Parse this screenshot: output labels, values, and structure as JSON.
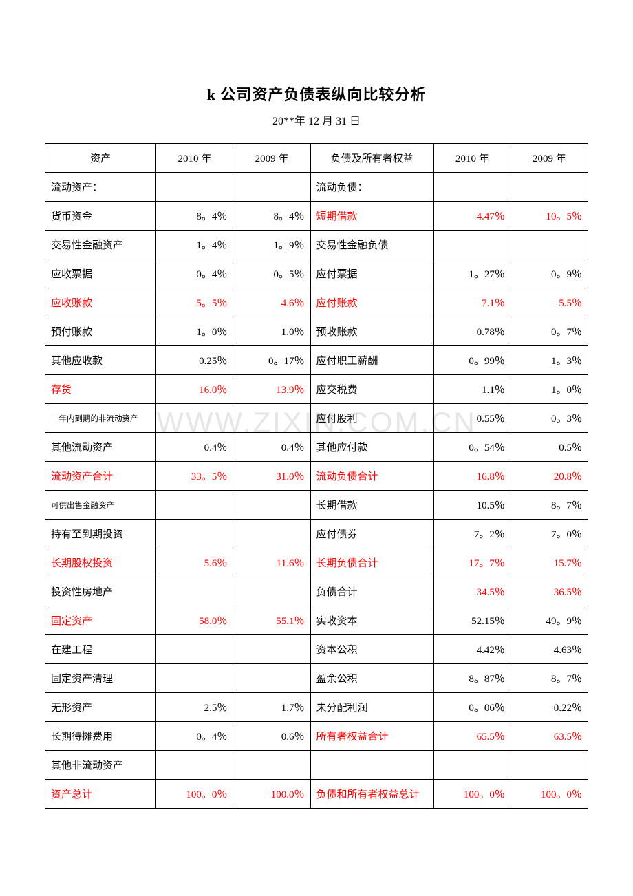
{
  "title": "k 公司资产负债表纵向比较分析",
  "subtitle": "20**年 12 月 31 日",
  "watermark": "WWW.ZIXIN.COM.CN",
  "headers": {
    "assets": "资产",
    "y2010": "2010 年",
    "y2009": "2009 年",
    "liab": "负债及所有者权益"
  },
  "rows": [
    {
      "a_label": "流动资产：",
      "a_red": false,
      "a_small": false,
      "a2010": "",
      "a2010_red": false,
      "a2009": "",
      "a2009_red": false,
      "l_label": "流动负债：",
      "l_red": false,
      "l2010": "",
      "l2010_red": false,
      "l2009": "",
      "l2009_red": false
    },
    {
      "a_label": "货币资金",
      "a_red": false,
      "a_small": false,
      "a2010": "8。4％",
      "a2010_red": false,
      "a2009": "8。4％",
      "a2009_red": false,
      "l_label": "短期借款",
      "l_red": true,
      "l2010": "4.47％",
      "l2010_red": true,
      "l2009": "10。5％",
      "l2009_red": true
    },
    {
      "a_label": "交易性金融资产",
      "a_red": false,
      "a_small": false,
      "a2010": "1。4％",
      "a2010_red": false,
      "a2009": "1。9％",
      "a2009_red": false,
      "l_label": "交易性金融负债",
      "l_red": false,
      "l2010": "",
      "l2010_red": false,
      "l2009": "",
      "l2009_red": false
    },
    {
      "a_label": "应收票据",
      "a_red": false,
      "a_small": false,
      "a2010": "0。4％",
      "a2010_red": false,
      "a2009": "0。5％",
      "a2009_red": false,
      "l_label": "应付票据",
      "l_red": false,
      "l2010": "1。27％",
      "l2010_red": false,
      "l2009": "0。9％",
      "l2009_red": false
    },
    {
      "a_label": "应收账款",
      "a_red": true,
      "a_small": false,
      "a2010": "5。5％",
      "a2010_red": true,
      "a2009": "4.6％",
      "a2009_red": true,
      "l_label": "应付账款",
      "l_red": true,
      "l2010": "7.1％",
      "l2010_red": true,
      "l2009": "5.5％",
      "l2009_red": true
    },
    {
      "a_label": "预付账款",
      "a_red": false,
      "a_small": false,
      "a2010": "1。0％",
      "a2010_red": false,
      "a2009": "1.0％",
      "a2009_red": false,
      "l_label": "预收账款",
      "l_red": false,
      "l2010": "0.78％",
      "l2010_red": false,
      "l2009": "0。7％",
      "l2009_red": false
    },
    {
      "a_label": "其他应收款",
      "a_red": false,
      "a_small": false,
      "a2010": "0.25％",
      "a2010_red": false,
      "a2009": "0。17％",
      "a2009_red": false,
      "l_label": "应付职工薪酬",
      "l_red": false,
      "l2010": "0。99％",
      "l2010_red": false,
      "l2009": "1。3％",
      "l2009_red": false
    },
    {
      "a_label": "存货",
      "a_red": true,
      "a_small": false,
      "a2010": "16.0％",
      "a2010_red": true,
      "a2009": "13.9％",
      "a2009_red": true,
      "l_label": "应交税费",
      "l_red": false,
      "l2010": "1.1％",
      "l2010_red": false,
      "l2009": "1。0％",
      "l2009_red": false
    },
    {
      "a_label": "一年内到期的非流动资产",
      "a_red": false,
      "a_small": true,
      "a2010": "",
      "a2010_red": false,
      "a2009": "",
      "a2009_red": false,
      "l_label": "应付股利",
      "l_red": false,
      "l2010": "0.55％",
      "l2010_red": false,
      "l2009": "0。3％",
      "l2009_red": false
    },
    {
      "a_label": "其他流动资产",
      "a_red": false,
      "a_small": false,
      "a2010": "0.4％",
      "a2010_red": false,
      "a2009": "0.4％",
      "a2009_red": false,
      "l_label": "其他应付款",
      "l_red": false,
      "l2010": "0。54％",
      "l2010_red": false,
      "l2009": "0.5％",
      "l2009_red": false
    },
    {
      "a_label": "流动资产合计",
      "a_red": true,
      "a_small": false,
      "a2010": "33。5％",
      "a2010_red": true,
      "a2009": "31.0％",
      "a2009_red": true,
      "l_label": "流动负债合计",
      "l_red": true,
      "l2010": "16.8％",
      "l2010_red": true,
      "l2009": "20.8％",
      "l2009_red": true
    },
    {
      "a_label": "可供出售金融资产",
      "a_red": false,
      "a_small": true,
      "a2010": "",
      "a2010_red": false,
      "a2009": "",
      "a2009_red": false,
      "l_label": "长期借款",
      "l_red": false,
      "l2010": "10.5％",
      "l2010_red": false,
      "l2009": "8。7％",
      "l2009_red": false
    },
    {
      "a_label": "持有至到期投资",
      "a_red": false,
      "a_small": false,
      "a2010": "",
      "a2010_red": false,
      "a2009": "",
      "a2009_red": false,
      "l_label": "应付债券",
      "l_red": false,
      "l2010": "7。2％",
      "l2010_red": false,
      "l2009": "7。0％",
      "l2009_red": false
    },
    {
      "a_label": "长期股权投资",
      "a_red": true,
      "a_small": false,
      "a2010": "5.6％",
      "a2010_red": true,
      "a2009": "11.6％",
      "a2009_red": true,
      "l_label": "长期负债合计",
      "l_red": true,
      "l2010": "17。7％",
      "l2010_red": true,
      "l2009": "15.7％",
      "l2009_red": true
    },
    {
      "a_label": "投资性房地产",
      "a_red": false,
      "a_small": false,
      "a2010": "",
      "a2010_red": false,
      "a2009": "",
      "a2009_red": false,
      "l_label": "负债合计",
      "l_red": false,
      "l2010": "34.5％",
      "l2010_red": true,
      "l2009": "36.5％",
      "l2009_red": true
    },
    {
      "a_label": "固定资产",
      "a_red": true,
      "a_small": false,
      "a2010": "58.0％",
      "a2010_red": true,
      "a2009": "55.1％",
      "a2009_red": true,
      "l_label": "实收资本",
      "l_red": false,
      "l2010": "52.15％",
      "l2010_red": false,
      "l2009": "49。9％",
      "l2009_red": false
    },
    {
      "a_label": "在建工程",
      "a_red": false,
      "a_small": false,
      "a2010": "",
      "a2010_red": false,
      "a2009": "",
      "a2009_red": false,
      "l_label": "资本公积",
      "l_red": false,
      "l2010": "4.42％",
      "l2010_red": false,
      "l2009": "4.63％",
      "l2009_red": false
    },
    {
      "a_label": "固定资产清理",
      "a_red": false,
      "a_small": false,
      "a2010": "",
      "a2010_red": false,
      "a2009": "",
      "a2009_red": false,
      "l_label": "盈余公积",
      "l_red": false,
      "l2010": "8。87％",
      "l2010_red": false,
      "l2009": "8。7％",
      "l2009_red": false
    },
    {
      "a_label": "无形资产",
      "a_red": false,
      "a_small": false,
      "a2010": "2.5％",
      "a2010_red": false,
      "a2009": "1.7％",
      "a2009_red": false,
      "l_label": "未分配利润",
      "l_red": false,
      "l2010": "0。06％",
      "l2010_red": false,
      "l2009": "0.22％",
      "l2009_red": false
    },
    {
      "a_label": "长期待摊费用",
      "a_red": false,
      "a_small": false,
      "a2010": "0。4％",
      "a2010_red": false,
      "a2009": "0.6％",
      "a2009_red": false,
      "l_label": "所有者权益合计",
      "l_red": true,
      "l2010": "65.5％",
      "l2010_red": true,
      "l2009": "63.5％",
      "l2009_red": true
    },
    {
      "a_label": "其他非流动资产",
      "a_red": false,
      "a_small": false,
      "a2010": "",
      "a2010_red": false,
      "a2009": "",
      "a2009_red": false,
      "l_label": "",
      "l_red": false,
      "l2010": "",
      "l2010_red": false,
      "l2009": "",
      "l2009_red": false
    },
    {
      "a_label": "资产总计",
      "a_red": true,
      "a_small": false,
      "a2010": "100。0％",
      "a2010_red": true,
      "a2009": "100.0％",
      "a2009_red": true,
      "l_label": "负债和所有者权益总计",
      "l_red": true,
      "l2010": "100。0％",
      "l2010_red": true,
      "l2009": "100。0％",
      "l2009_red": true
    }
  ]
}
